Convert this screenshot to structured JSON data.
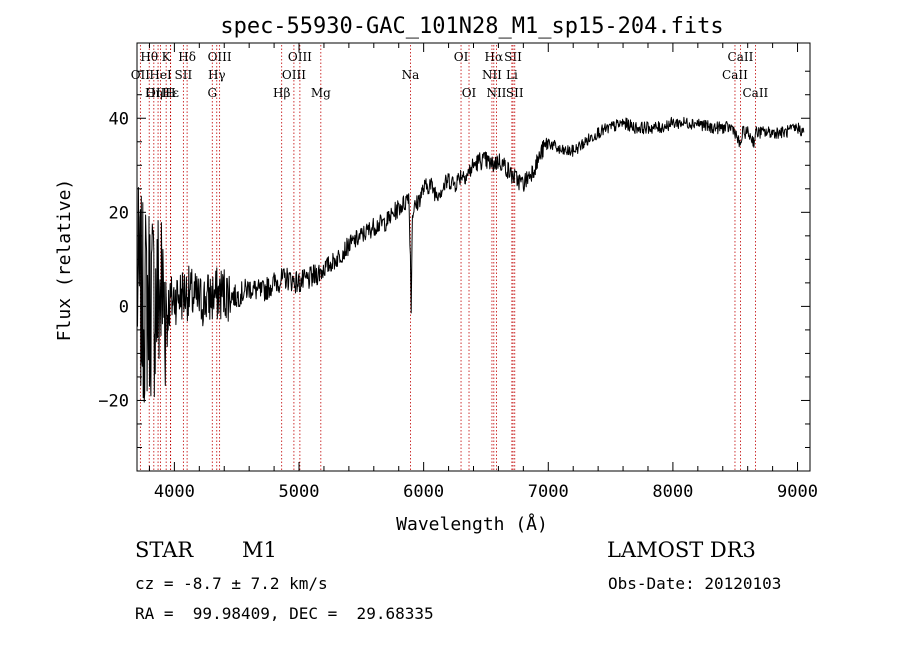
{
  "chart_data": {
    "type": "line",
    "title": "spec-55930-GAC_101N28_M1_sp15-204.fits",
    "xlabel": "Wavelength (Å)",
    "ylabel": "Flux (relative)",
    "xlim": [
      3700,
      9100
    ],
    "ylim": [
      -35,
      56
    ],
    "x_ticks": [
      4000,
      5000,
      6000,
      7000,
      8000,
      9000
    ],
    "y_ticks": [
      -20,
      0,
      20,
      40
    ],
    "grid": false,
    "lines": [
      {
        "label": "Hθ",
        "wavelength": 3798
      },
      {
        "label": "OII",
        "wavelength": 3727
      },
      {
        "label": "OIII",
        "wavelength": 3869
      },
      {
        "label": "Hε",
        "wavelength": 3970
      },
      {
        "label": "Hη",
        "wavelength": 3835
      },
      {
        "label": "K",
        "wavelength": 3934
      },
      {
        "label": "H",
        "wavelength": 3968
      },
      {
        "label": "HeI",
        "wavelength": 3889
      },
      {
        "label": "SII",
        "wavelength": 4072
      },
      {
        "label": "Hδ",
        "wavelength": 4102
      },
      {
        "label": "OIII",
        "wavelength": 4363
      },
      {
        "label": "Hγ",
        "wavelength": 4340
      },
      {
        "label": "G",
        "wavelength": 4304
      },
      {
        "label": "OIII",
        "wavelength": 5007
      },
      {
        "label": "OIII",
        "wavelength": 4959
      },
      {
        "label": "Hβ",
        "wavelength": 4861
      },
      {
        "label": "Mg",
        "wavelength": 5175
      },
      {
        "label": "Na",
        "wavelength": 5894
      },
      {
        "label": "OI",
        "wavelength": 6300
      },
      {
        "label": "OI",
        "wavelength": 6364
      },
      {
        "label": "Hα",
        "wavelength": 6563
      },
      {
        "label": "NII",
        "wavelength": 6548
      },
      {
        "label": "NII",
        "wavelength": 6584
      },
      {
        "label": "SII",
        "wavelength": 6717
      },
      {
        "label": "Li",
        "wavelength": 6708
      },
      {
        "label": "SII",
        "wavelength": 6731
      },
      {
        "label": "CaII",
        "wavelength": 8542
      },
      {
        "label": "CaII",
        "wavelength": 8498
      },
      {
        "label": "CaII",
        "wavelength": 8662
      }
    ],
    "spectrum": {
      "x": [
        3700,
        3750,
        3800,
        3850,
        3900,
        3950,
        4000,
        4100,
        4200,
        4300,
        4400,
        4500,
        4600,
        4700,
        4800,
        4900,
        5000,
        5100,
        5200,
        5300,
        5400,
        5500,
        5600,
        5700,
        5800,
        5850,
        5880,
        5890,
        5900,
        5910,
        5950,
        6000,
        6050,
        6100,
        6150,
        6200,
        6250,
        6300,
        6350,
        6400,
        6450,
        6500,
        6550,
        6600,
        6650,
        6700,
        6750,
        6800,
        6850,
        6900,
        6950,
        7000,
        7050,
        7100,
        7150,
        7200,
        7300,
        7400,
        7500,
        7600,
        7700,
        7800,
        7900,
        8000,
        8100,
        8200,
        8300,
        8400,
        8480,
        8500,
        8540,
        8560,
        8600,
        8650,
        8665,
        8700,
        8800,
        8900,
        9000,
        9050
      ],
      "y": [
        5,
        0,
        2,
        1,
        3,
        0,
        2,
        3,
        1,
        2,
        3,
        2,
        4,
        3,
        5,
        6,
        5,
        6,
        8,
        10,
        13,
        15,
        17,
        18,
        21,
        22,
        24,
        15,
        0,
        20,
        22,
        25,
        26,
        24,
        25,
        27,
        26,
        28,
        28,
        30,
        31,
        31,
        30,
        31,
        30,
        28,
        27,
        26,
        28,
        30,
        33,
        35,
        34,
        33,
        33,
        33,
        35,
        37,
        38,
        39,
        38,
        38,
        38,
        39,
        39,
        39,
        38,
        38,
        38,
        37,
        34,
        37,
        37,
        35,
        37,
        37,
        37,
        37,
        38,
        37
      ]
    }
  },
  "footer": {
    "object_class": "STAR",
    "subclass": "M1",
    "survey": "LAMOST DR3",
    "cz": "cz = -8.7 ± 7.2 km/s",
    "obs_date": "Obs-Date: 20120103",
    "coords": "RA =  99.98409, DEC =  29.68335"
  }
}
